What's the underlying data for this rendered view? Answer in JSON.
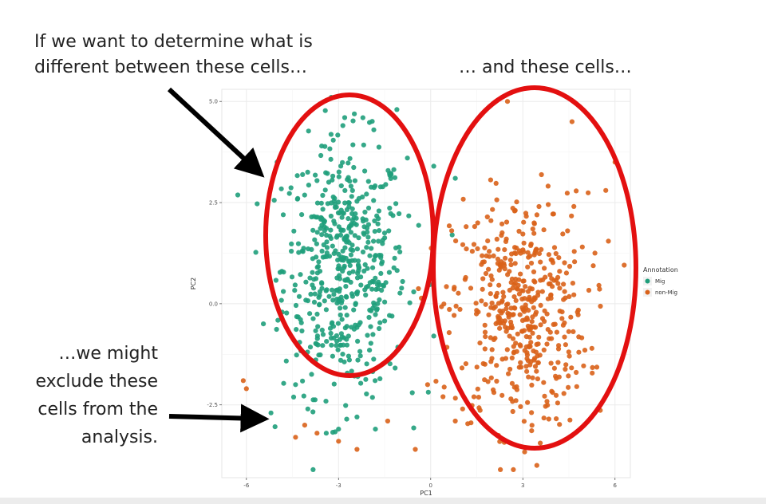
{
  "annotations": {
    "top_left_line1": "If we want to determine what is",
    "top_left_line2": "different between these cells…",
    "top_right": "… and these cells…",
    "bottom_left_line1": "…we might",
    "bottom_left_line2": "exclude these",
    "bottom_left_line3": "cells from the",
    "bottom_left_line4": "analysis."
  },
  "colors": {
    "mig": "#1f9e7b",
    "non_mig": "#d9621a",
    "ellipse": "#e31010",
    "arrow": "#000000",
    "panel_bg": "#ffffff",
    "grid": "#ebebeb"
  },
  "chart_data": {
    "type": "scatter",
    "xlabel": "PC1",
    "ylabel": "PC2",
    "xlim": [
      -6.8,
      6.5
    ],
    "ylim": [
      -4.3,
      5.3
    ],
    "xticks": [
      -6,
      -3,
      0,
      3,
      6
    ],
    "xtick_labels": [
      "-6",
      "-3",
      "0",
      "3",
      "6"
    ],
    "yticks": [
      -2.5,
      0,
      2.5,
      5
    ],
    "ytick_labels": [
      "-2.5",
      "0.0",
      "2.5",
      "5.0"
    ],
    "grid": true,
    "legend": {
      "title": "Annotation",
      "position": "right",
      "entries": [
        "Mig",
        "non-Mig"
      ]
    },
    "series": [
      {
        "name": "Mig",
        "color": "#1f9e7b",
        "center": [
          -2.8,
          0.9
        ],
        "spread": [
          1.0,
          1.55
        ],
        "n": 520,
        "extra_points": [
          [
            -5.0,
            3.5
          ],
          [
            -4.8,
            2.2
          ],
          [
            -2.8,
            4.6
          ],
          [
            -1.1,
            4.8
          ],
          [
            0.1,
            3.4
          ],
          [
            -6.0,
            -2.8
          ],
          [
            -5.2,
            -2.7
          ],
          [
            -4.4,
            -2.0
          ],
          [
            -4.0,
            -2.6
          ],
          [
            -3.4,
            -3.2
          ],
          [
            -3.0,
            -3.1
          ],
          [
            -2.4,
            -2.8
          ],
          [
            -1.8,
            -3.1
          ],
          [
            -0.6,
            -2.2
          ],
          [
            0.1,
            -0.8
          ],
          [
            0.7,
            1.7
          ],
          [
            0.8,
            3.1
          ]
        ]
      },
      {
        "name": "non-Mig",
        "color": "#d9621a",
        "center": [
          2.9,
          -0.2
        ],
        "spread": [
          1.1,
          1.45
        ],
        "n": 480,
        "extra_points": [
          [
            2.5,
            5.0
          ],
          [
            4.6,
            4.5
          ],
          [
            6.0,
            3.5
          ],
          [
            5.7,
            2.8
          ],
          [
            -6.0,
            -2.1
          ],
          [
            -6.1,
            -1.9
          ],
          [
            -4.4,
            -3.3
          ],
          [
            -4.1,
            -3.0
          ],
          [
            -3.7,
            -3.2
          ],
          [
            -3.0,
            -3.4
          ],
          [
            -2.4,
            -3.6
          ],
          [
            -1.4,
            -2.9
          ],
          [
            -0.5,
            -3.6
          ],
          [
            -0.1,
            -2.0
          ],
          [
            0.4,
            -2.3
          ],
          [
            0.8,
            -2.9
          ]
        ]
      }
    ]
  }
}
